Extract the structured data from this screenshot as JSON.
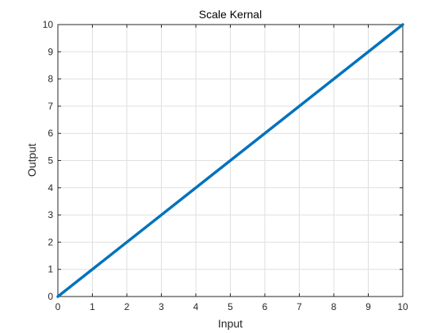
{
  "chart_data": {
    "type": "line",
    "title": "Scale Kernal",
    "xlabel": "Input",
    "ylabel": "Output",
    "xlim": [
      0,
      10
    ],
    "ylim": [
      0,
      10
    ],
    "xticks": [
      "0",
      "1",
      "2",
      "3",
      "4",
      "5",
      "6",
      "7",
      "8",
      "9",
      "10"
    ],
    "yticks": [
      "0",
      "1",
      "2",
      "3",
      "4",
      "5",
      "6",
      "7",
      "8",
      "9",
      "10"
    ],
    "grid": true,
    "series": [
      {
        "x": [
          0,
          10
        ],
        "y": [
          0,
          10
        ],
        "color": "#0072bd"
      }
    ]
  }
}
